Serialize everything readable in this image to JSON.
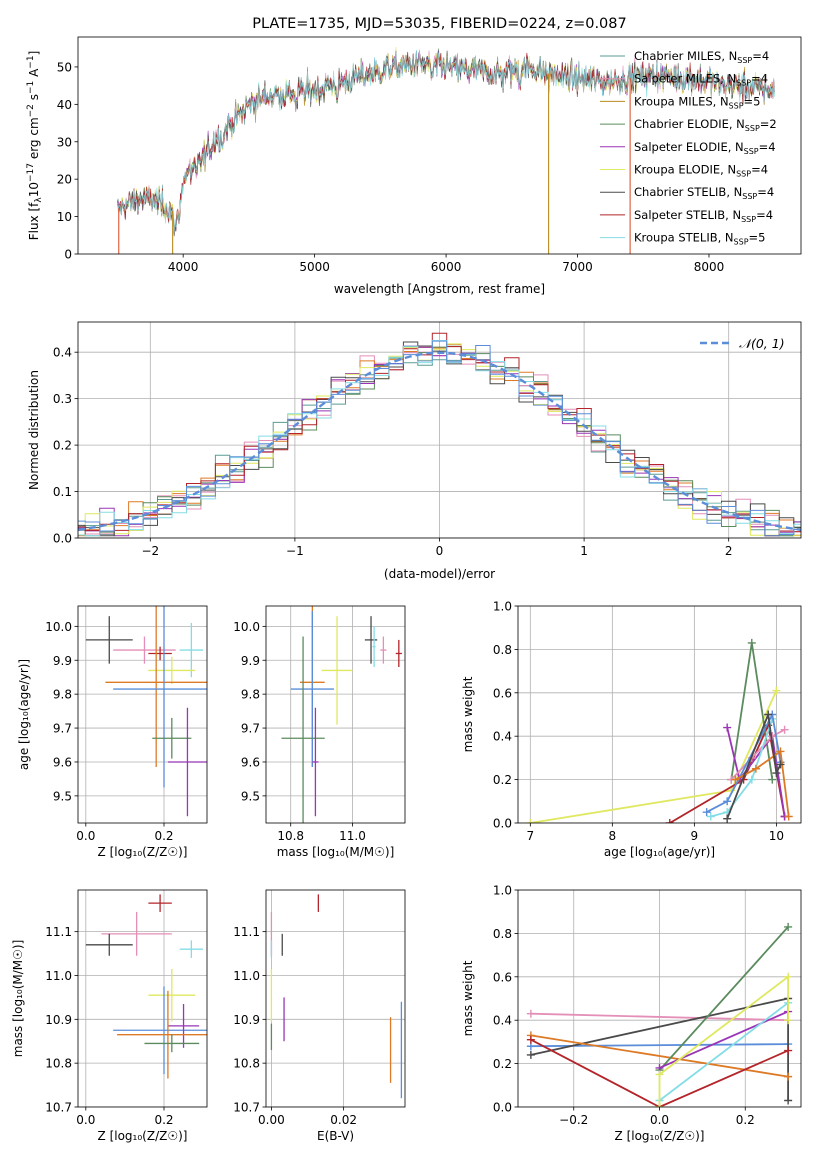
{
  "chart_data": [
    {
      "id": "spectrum",
      "type": "line",
      "title": "PLATE=1735, MJD=53035, FIBERID=0224, z=0.087",
      "xlabel": "wavelength [Angstrom, rest frame]",
      "ylabel": "Flux [f_λ10^-17 erg cm^-2 s^-1 A^-1]",
      "xlim": [
        3200,
        8700
      ],
      "ylim": [
        0,
        58
      ],
      "xticks": [
        "4000",
        "5000",
        "6000",
        "7000",
        "8000"
      ],
      "yticks": [
        "0",
        "10",
        "20",
        "30",
        "40",
        "50"
      ],
      "legend_position": "top-right",
      "continuum": {
        "x": [
          3500,
          3600,
          3700,
          3800,
          3900,
          3950,
          4000,
          4100,
          4200,
          4300,
          4400,
          4500,
          4600,
          4800,
          5000,
          5200,
          5400,
          5600,
          5800,
          6000,
          6200,
          6400,
          6600,
          6800,
          7000,
          7200,
          7400,
          7600,
          7800,
          8000,
          8200,
          8400,
          8500
        ],
        "y": [
          12,
          14,
          15,
          14,
          12,
          11,
          20,
          24,
          28,
          33,
          36,
          40,
          42,
          43,
          44,
          46,
          48,
          50,
          51,
          50,
          49,
          48,
          50,
          48,
          47,
          46,
          47,
          48,
          47,
          46,
          45,
          44,
          44
        ]
      },
      "series": [
        {
          "name": "Chabrier MILES, N_SSP=4",
          "color": "#5a9b93"
        },
        {
          "name": "Salpeter MILES, N_SSP=4",
          "color": "#e48fb8"
        },
        {
          "name": "Kroupa MILES, N_SSP=5",
          "color": "#b98b1e"
        },
        {
          "name": "Chabrier ELODIE, N_SSP=2",
          "color": "#5b8b5e"
        },
        {
          "name": "Salpeter ELODIE, N_SSP=4",
          "color": "#9a35b6"
        },
        {
          "name": "Kroupa ELODIE, N_SSP=4",
          "color": "#dfe85f"
        },
        {
          "name": "Chabrier STELIB, N_SSP=4",
          "color": "#4a4a4a"
        },
        {
          "name": "Salpeter STELIB, N_SSP=4",
          "color": "#b3252a"
        },
        {
          "name": "Kroupa STELIB, N_SSP=5",
          "color": "#84dde6"
        }
      ]
    },
    {
      "id": "residual-hist",
      "type": "line",
      "xlabel": "(data-model)/error",
      "ylabel": "Normed distribution",
      "xlim": [
        -2.5,
        2.5
      ],
      "ylim": [
        0,
        0.465
      ],
      "xticks": [
        "−2",
        "−1",
        "0",
        "1",
        "2"
      ],
      "yticks": [
        "0.0",
        "0.1",
        "0.2",
        "0.3",
        "0.4"
      ],
      "grid": true,
      "legend_position": "top-right",
      "gaussian_label": "𝒩(0, 1)",
      "gaussian_color": "#5b8dd9",
      "histogram_colors": [
        "#5a9b93",
        "#e48fb8",
        "#dd7a26",
        "#5b8b5e",
        "#9a35b6",
        "#dfe85f",
        "#4a4a4a",
        "#b3252a",
        "#84dde6",
        "#5b8dd9"
      ]
    },
    {
      "id": "age-vs-Z",
      "type": "scatter",
      "xlabel": "Z [log₁₀(Z/Z☉)]",
      "ylabel": "age  [log₁₀(age/yr)]",
      "xlim": [
        -0.02,
        0.31
      ],
      "ylim": [
        9.42,
        10.06
      ],
      "xticks": [
        "0.0",
        "0.2"
      ],
      "yticks": [
        "9.5",
        "9.6",
        "9.7",
        "9.8",
        "9.9",
        "10.0"
      ],
      "grid": true,
      "points": [
        {
          "x": 0.06,
          "y": 9.96,
          "xerr": 0.06,
          "yerr": 0.07,
          "color": "#4a4a4a"
        },
        {
          "x": 0.15,
          "y": 9.93,
          "xerr": 0.08,
          "yerr": 0.04,
          "color": "#e48fb8"
        },
        {
          "x": 0.19,
          "y": 9.92,
          "xerr": 0.03,
          "yerr": 0.02,
          "color": "#b3252a"
        },
        {
          "x": 0.27,
          "y": 9.93,
          "xerr": 0.03,
          "yerr": 0.08,
          "color": "#84dde6"
        },
        {
          "x": 0.22,
          "y": 9.87,
          "xerr": 0.06,
          "yerr": 0.04,
          "color": "#dfe85f"
        },
        {
          "x": 0.18,
          "y": 9.835,
          "xerr": 0.13,
          "yerr": 0.25,
          "color": "#dd7a26"
        },
        {
          "x": 0.2,
          "y": 9.815,
          "xerr": 0.13,
          "yerr": 0.29,
          "color": "#5b8dd9"
        },
        {
          "x": 0.22,
          "y": 9.67,
          "xerr": 0.05,
          "yerr": 0.06,
          "color": "#5b8b5e"
        },
        {
          "x": 0.26,
          "y": 9.6,
          "xerr": 0.05,
          "yerr": 0.16,
          "color": "#9a35b6"
        }
      ]
    },
    {
      "id": "age-vs-mass",
      "type": "scatter",
      "xlabel": "mass [log₁₀(M/M☉)]",
      "ylabel": "",
      "xlim": [
        10.72,
        11.17
      ],
      "ylim": [
        9.42,
        10.06
      ],
      "xticks": [
        "10.8",
        "11.0"
      ],
      "yticks": [
        "9.5",
        "9.6",
        "9.7",
        "9.8",
        "9.9",
        "10.0"
      ],
      "grid": true,
      "points": [
        {
          "x": 11.06,
          "y": 9.96,
          "xerr": 0.02,
          "yerr": 0.07,
          "color": "#4a4a4a"
        },
        {
          "x": 11.1,
          "y": 9.93,
          "xerr": 0.01,
          "yerr": 0.04,
          "color": "#e48fb8"
        },
        {
          "x": 11.15,
          "y": 9.92,
          "xerr": 0.01,
          "yerr": 0.04,
          "color": "#b3252a"
        },
        {
          "x": 11.07,
          "y": 9.94,
          "xerr": 0.005,
          "yerr": 0.06,
          "color": "#84dde6"
        },
        {
          "x": 10.95,
          "y": 9.87,
          "xerr": 0.05,
          "yerr": 0.16,
          "color": "#dfe85f"
        },
        {
          "x": 10.87,
          "y": 9.835,
          "xerr": 0.04,
          "yerr": 0.25,
          "color": "#dd7a26"
        },
        {
          "x": 10.87,
          "y": 9.815,
          "xerr": 0.07,
          "yerr": 0.23,
          "color": "#5b8dd9"
        },
        {
          "x": 10.84,
          "y": 9.67,
          "xerr": 0.07,
          "yerr": 0.3,
          "color": "#5b8b5e"
        },
        {
          "x": 10.88,
          "y": 9.6,
          "xerr": 0.01,
          "yerr": 0.16,
          "color": "#9a35b6"
        }
      ]
    },
    {
      "id": "weight-vs-age",
      "type": "line",
      "xlabel": "age  [log₁₀(age/yr)]",
      "ylabel": "mass weight",
      "xlim": [
        6.85,
        10.3
      ],
      "ylim": [
        0,
        1.0
      ],
      "xticks": [
        "7",
        "8",
        "9",
        "10"
      ],
      "yticks": [
        "0.0",
        "0.2",
        "0.4",
        "0.6",
        "0.8",
        "1.0"
      ],
      "grid": true,
      "series": [
        {
          "color": "#dfe85f",
          "x": [
            7.0,
            9.45,
            10.0
          ],
          "y": [
            0.0,
            0.15,
            0.61
          ]
        },
        {
          "color": "#b3252a",
          "x": [
            8.7,
            9.6,
            9.9,
            10.1
          ],
          "y": [
            0.0,
            0.2,
            0.45,
            0.03
          ]
        },
        {
          "color": "#5b8b5e",
          "x": [
            9.45,
            9.7,
            9.95
          ],
          "y": [
            0.2,
            0.83,
            0.2
          ]
        },
        {
          "color": "#9a35b6",
          "x": [
            9.4,
            9.55,
            9.95,
            10.1
          ],
          "y": [
            0.44,
            0.2,
            0.4,
            0.03
          ]
        },
        {
          "color": "#e48fb8",
          "x": [
            9.45,
            9.7,
            9.95,
            10.1
          ],
          "y": [
            0.2,
            0.3,
            0.4,
            0.43
          ]
        },
        {
          "color": "#84dde6",
          "x": [
            9.2,
            9.4,
            9.7,
            9.95
          ],
          "y": [
            0.03,
            0.05,
            0.2,
            0.48
          ]
        },
        {
          "color": "#5b8dd9",
          "x": [
            9.15,
            9.4,
            9.95,
            10.05
          ],
          "y": [
            0.05,
            0.1,
            0.5,
            0.28
          ]
        },
        {
          "color": "#dd7a26",
          "x": [
            9.5,
            9.75,
            10.05,
            10.15
          ],
          "y": [
            0.2,
            0.25,
            0.33,
            0.03
          ]
        },
        {
          "color": "#4a4a4a",
          "x": [
            9.4,
            9.9,
            10.0,
            10.05
          ],
          "y": [
            0.02,
            0.5,
            0.23,
            0.27
          ]
        }
      ]
    },
    {
      "id": "mass-vs-Z",
      "type": "scatter",
      "xlabel": "Z [log₁₀(Z/Z☉)]",
      "ylabel": "mass [log₁₀(M/M☉)]",
      "xlim": [
        -0.02,
        0.31
      ],
      "ylim": [
        10.7,
        11.195
      ],
      "xticks": [
        "0.0",
        "0.2"
      ],
      "yticks": [
        "10.7",
        "10.8",
        "10.9",
        "11.0",
        "11.1"
      ],
      "grid": true,
      "points": [
        {
          "x": 0.19,
          "y": 11.165,
          "xerr": 0.03,
          "yerr": 0.02,
          "color": "#b3252a"
        },
        {
          "x": 0.13,
          "y": 11.095,
          "xerr": 0.09,
          "yerr": 0.05,
          "color": "#e48fb8"
        },
        {
          "x": 0.06,
          "y": 11.07,
          "xerr": 0.06,
          "yerr": 0.025,
          "color": "#4a4a4a"
        },
        {
          "x": 0.27,
          "y": 11.06,
          "xerr": 0.03,
          "yerr": 0.02,
          "color": "#84dde6"
        },
        {
          "x": 0.22,
          "y": 10.955,
          "xerr": 0.06,
          "yerr": 0.06,
          "color": "#dfe85f"
        },
        {
          "x": 0.2,
          "y": 10.875,
          "xerr": 0.13,
          "yerr": 0.1,
          "color": "#5b8dd9"
        },
        {
          "x": 0.25,
          "y": 10.885,
          "xerr": 0.04,
          "yerr": 0.05,
          "color": "#9a35b6"
        },
        {
          "x": 0.21,
          "y": 10.865,
          "xerr": 0.13,
          "yerr": 0.1,
          "color": "#dd7a26"
        },
        {
          "x": 0.22,
          "y": 10.845,
          "xerr": 0.07,
          "yerr": 0.02,
          "color": "#5b8b5e"
        }
      ]
    },
    {
      "id": "mass-vs-ebv",
      "type": "scatter",
      "xlabel": "E(B-V)",
      "ylabel": "",
      "xlim": [
        -0.0015,
        0.037
      ],
      "ylim": [
        10.7,
        11.195
      ],
      "xticks": [
        "0.00",
        "0.02"
      ],
      "yticks": [
        "10.7",
        "10.8",
        "10.9",
        "11.0",
        "11.1"
      ],
      "grid": true,
      "points": [
        {
          "x": 0.013,
          "y": 11.165,
          "xerr": 0,
          "yerr": 0.02,
          "color": "#b3252a"
        },
        {
          "x": 0.0,
          "y": 11.095,
          "xerr": 0,
          "yerr": 0.05,
          "color": "#e48fb8"
        },
        {
          "x": 0.003,
          "y": 11.07,
          "xerr": 0,
          "yerr": 0.025,
          "color": "#4a4a4a"
        },
        {
          "x": 0.0,
          "y": 11.06,
          "xerr": 0,
          "yerr": 0.02,
          "color": "#84dde6"
        },
        {
          "x": 0.0,
          "y": 10.955,
          "xerr": 0,
          "yerr": 0.06,
          "color": "#dfe85f"
        },
        {
          "x": 0.0,
          "y": 10.86,
          "xerr": 0,
          "yerr": 0.03,
          "color": "#5b8b5e"
        },
        {
          "x": 0.0035,
          "y": 10.9,
          "xerr": 0,
          "yerr": 0.05,
          "color": "#9a35b6"
        },
        {
          "x": 0.033,
          "y": 10.83,
          "xerr": 0,
          "yerr": 0.075,
          "color": "#dd7a26"
        },
        {
          "x": 0.036,
          "y": 10.83,
          "xerr": 0,
          "yerr": 0.11,
          "color": "#5b8dd9"
        }
      ]
    },
    {
      "id": "weight-vs-Z",
      "type": "line",
      "xlabel": "Z [log₁₀(Z/Z☉)]",
      "ylabel": "mass weight",
      "xlim": [
        -0.33,
        0.33
      ],
      "ylim": [
        0,
        1.0
      ],
      "xticks": [
        "−0.2",
        "0.0",
        "0.2"
      ],
      "yticks": [
        "0.0",
        "0.2",
        "0.4",
        "0.6",
        "0.8",
        "1.0"
      ],
      "grid": true,
      "series": [
        {
          "color": "#e48fb8",
          "x": [
            -0.3,
            0.3
          ],
          "y": [
            0.43,
            0.4
          ]
        },
        {
          "color": "#5b8dd9",
          "x": [
            -0.3,
            0.3
          ],
          "y": [
            0.28,
            0.29
          ]
        },
        {
          "color": "#4a4a4a",
          "x": [
            -0.3,
            0.3,
            0.3
          ],
          "y": [
            0.24,
            0.5,
            0.03
          ]
        },
        {
          "color": "#dd7a26",
          "x": [
            -0.3,
            0.3
          ],
          "y": [
            0.33,
            0.14
          ]
        },
        {
          "color": "#b3252a",
          "x": [
            -0.3,
            0.0,
            0.3
          ],
          "y": [
            0.31,
            0.0,
            0.26
          ]
        },
        {
          "color": "#5b8b5e",
          "x": [
            0.0,
            0.3
          ],
          "y": [
            0.17,
            0.83
          ]
        },
        {
          "color": "#9a35b6",
          "x": [
            0.0,
            0.3
          ],
          "y": [
            0.18,
            0.44
          ]
        },
        {
          "color": "#84dde6",
          "x": [
            0.0,
            0.3
          ],
          "y": [
            0.03,
            0.48
          ]
        },
        {
          "color": "#dfe85f",
          "x": [
            0.0,
            0.0,
            0.3,
            0.3
          ],
          "y": [
            0.0,
            0.15,
            0.6,
            0.4
          ]
        }
      ]
    }
  ]
}
